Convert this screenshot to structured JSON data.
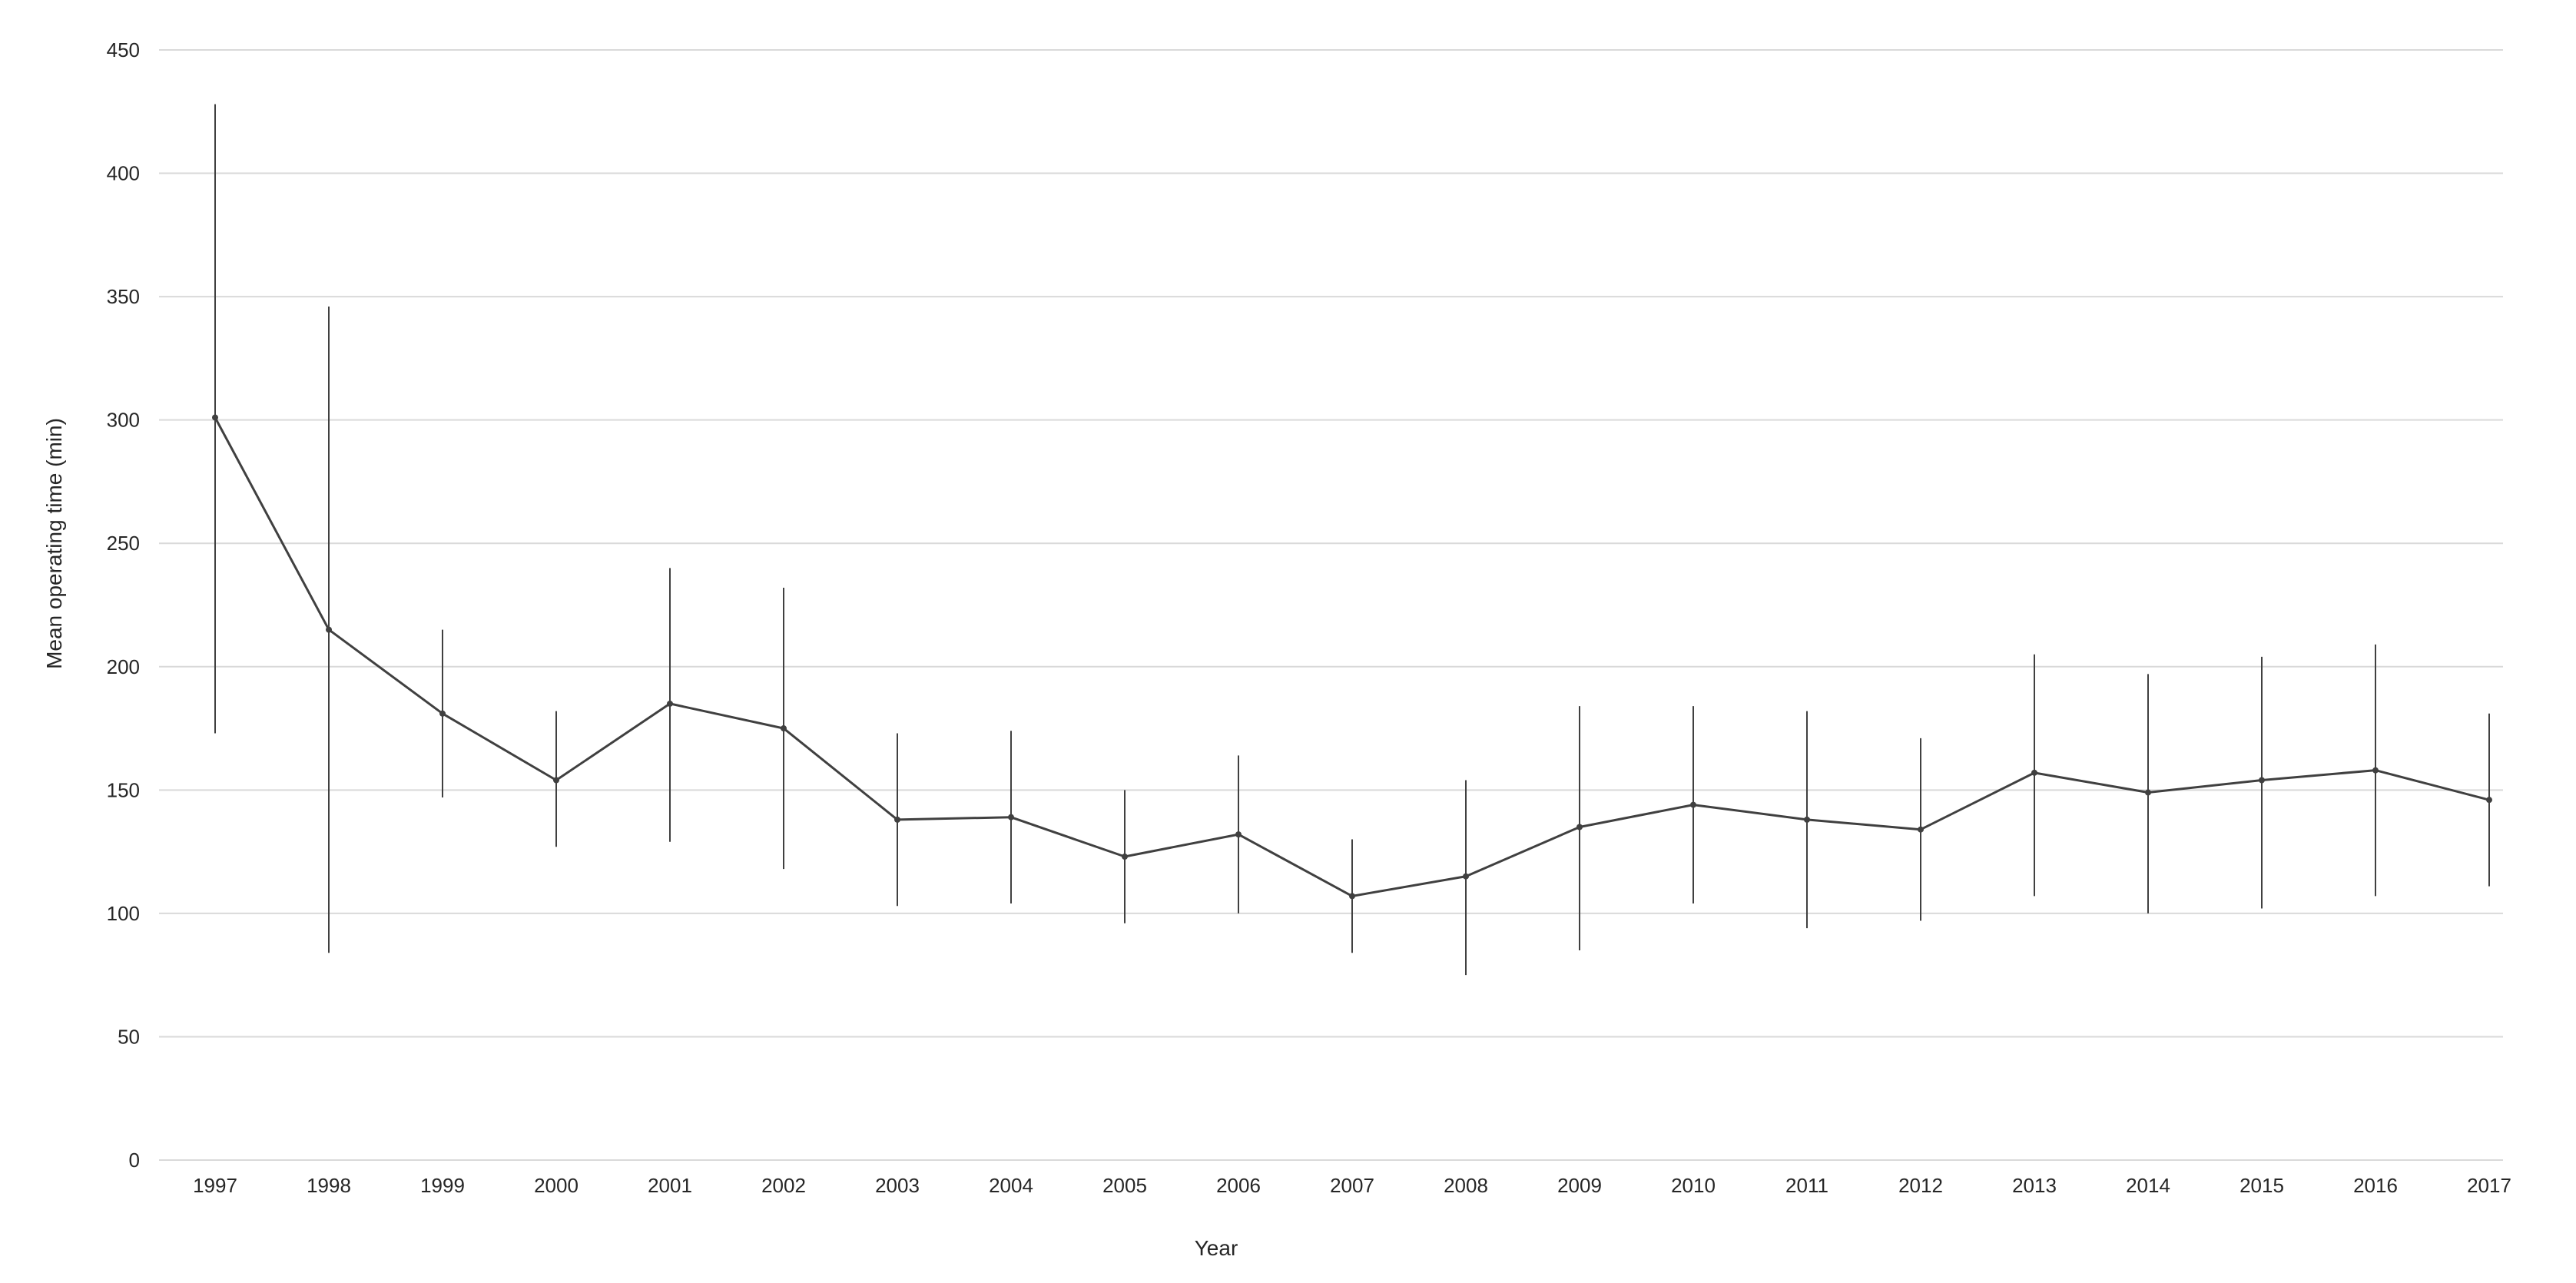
{
  "chart_data": {
    "type": "line",
    "title": "",
    "xlabel": "Year",
    "ylabel": "Mean operating time (min)",
    "categories": [
      "1997",
      "1998",
      "1999",
      "2000",
      "2001",
      "2002",
      "2003",
      "2004",
      "2005",
      "2006",
      "2007",
      "2008",
      "2009",
      "2010",
      "2011",
      "2012",
      "2013",
      "2014",
      "2015",
      "2016",
      "2017"
    ],
    "series": [
      {
        "values": [
          301,
          215,
          181,
          154,
          185,
          175,
          138,
          139,
          123,
          132,
          107,
          115,
          135,
          144,
          138,
          134,
          157,
          149,
          154,
          158,
          146
        ],
        "error_low": [
          173,
          84,
          147,
          127,
          129,
          118,
          103,
          104,
          96,
          100,
          84,
          75,
          85,
          104,
          94,
          97,
          107,
          100,
          102,
          107,
          111
        ],
        "error_high": [
          428,
          346,
          215,
          182,
          240,
          232,
          173,
          174,
          150,
          164,
          130,
          154,
          184,
          184,
          182,
          171,
          205,
          197,
          204,
          209,
          181
        ]
      }
    ],
    "ylim": [
      0,
      450
    ],
    "yticks": [
      0,
      50,
      100,
      150,
      200,
      250,
      300,
      350,
      400,
      450
    ],
    "grid": true,
    "legend": "none",
    "colors": {
      "line": "#404040",
      "grid": "#d9d9d9",
      "text": "#262626",
      "background": "#ffffff"
    }
  }
}
